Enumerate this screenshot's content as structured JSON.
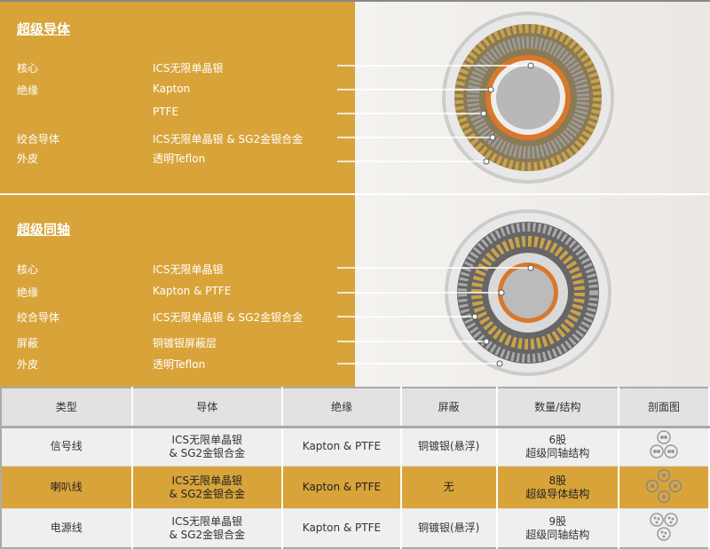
{
  "super_conductor": {
    "title": "超级导体",
    "rows": [
      {
        "label": "核心",
        "value": "ICS无限单晶银"
      },
      {
        "label": "绝缘",
        "value": "Kapton"
      },
      {
        "label": "",
        "value": "PTFE"
      },
      {
        "label": "绞合导体",
        "value": "ICS无限单晶银 & SG2金银合金"
      },
      {
        "label": "外皮",
        "value": "透明Teflon"
      }
    ]
  },
  "super_coax": {
    "title": "超级同轴",
    "rows": [
      {
        "label": "核心",
        "value": "ICS无限单晶银"
      },
      {
        "label": "绝缘",
        "value": "Kapton & PTFE"
      },
      {
        "label": "绞合导体",
        "value": "ICS无限单晶银 & SG2金银合金"
      },
      {
        "label": "屏蔽",
        "value": "铜镀银屏蔽层"
      },
      {
        "label": "外皮",
        "value": "透明Teflon"
      }
    ]
  },
  "table": {
    "headers": [
      "类型",
      "导体",
      "绝缘",
      "屏蔽",
      "数量/结构",
      "剖面图"
    ],
    "rows": [
      {
        "type": "信号线",
        "conductor_1": "ICS无限单晶银",
        "conductor_2": "& SG2金银合金",
        "insulation": "Kapton & PTFE",
        "shield": "铜镀银(悬浮)",
        "count": "6股",
        "structure": "超级同轴结构",
        "icon": "three-coax-cross-section-icon"
      },
      {
        "type": "喇叭线",
        "conductor_1": "ICS无限单晶银",
        "conductor_2": "& SG2金银合金",
        "insulation": "Kapton & PTFE",
        "shield": "无",
        "count": "8股",
        "structure": "超级导体结构",
        "icon": "four-conductor-cross-section-icon"
      },
      {
        "type": "电源线",
        "conductor_1": "ICS无限单晶银",
        "conductor_2": "& SG2金银合金",
        "insulation": "Kapton & PTFE",
        "shield": "铜镀银(悬浮)",
        "count": "9股",
        "structure": "超级同轴结构",
        "icon": "three-triple-cross-section-icon"
      }
    ]
  },
  "colors": {
    "gold": "#d8a43a",
    "copper": "#d9782a"
  }
}
